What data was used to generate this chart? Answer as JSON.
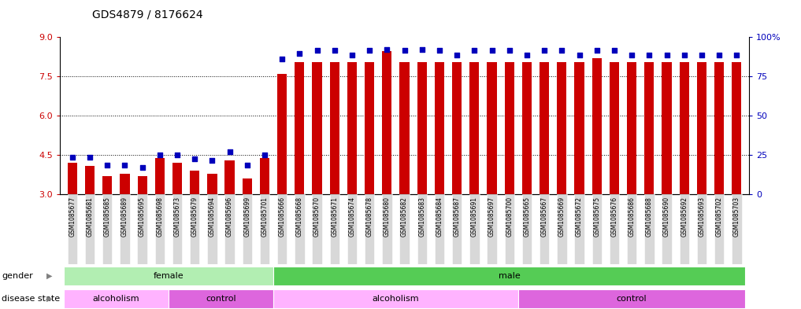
{
  "title": "GDS4879 / 8176624",
  "samples": [
    "GSM1085677",
    "GSM1085681",
    "GSM1085685",
    "GSM1085689",
    "GSM1085695",
    "GSM1085698",
    "GSM1085673",
    "GSM1085679",
    "GSM1085694",
    "GSM1085696",
    "GSM1085699",
    "GSM1085701",
    "GSM1085666",
    "GSM1085668",
    "GSM1085670",
    "GSM1085671",
    "GSM1085674",
    "GSM1085678",
    "GSM1085680",
    "GSM1085682",
    "GSM1085683",
    "GSM1085684",
    "GSM1085687",
    "GSM1085691",
    "GSM1085697",
    "GSM1085700",
    "GSM1085665",
    "GSM1085667",
    "GSM1085669",
    "GSM1085672",
    "GSM1085675",
    "GSM1085676",
    "GSM1085686",
    "GSM1085688",
    "GSM1085690",
    "GSM1085692",
    "GSM1085693",
    "GSM1085702",
    "GSM1085703"
  ],
  "red_values": [
    4.2,
    4.1,
    3.7,
    3.8,
    3.7,
    4.4,
    4.2,
    3.9,
    3.8,
    4.3,
    3.6,
    4.4,
    7.6,
    8.05,
    8.05,
    8.05,
    8.05,
    8.05,
    8.45,
    8.05,
    8.05,
    8.05,
    8.05,
    8.05,
    8.05,
    8.05,
    8.05,
    8.05,
    8.05,
    8.05,
    8.2,
    8.05,
    8.05,
    8.05,
    8.05,
    8.05,
    8.05,
    8.05,
    8.05
  ],
  "blue_values": [
    4.43,
    4.42,
    4.12,
    4.12,
    4.02,
    4.52,
    4.52,
    4.35,
    4.3,
    4.62,
    4.12,
    4.52,
    8.15,
    8.38,
    8.48,
    8.48,
    8.3,
    8.48,
    8.52,
    8.48,
    8.52,
    8.48,
    8.32,
    8.48,
    8.48,
    8.48,
    8.32,
    8.48,
    8.48,
    8.32,
    8.48,
    8.48,
    8.32,
    8.32,
    8.32,
    8.32,
    8.32,
    8.32,
    8.32
  ],
  "gender_groups": [
    {
      "label": "female",
      "start": 0,
      "end": 11,
      "color": "#b2eeb2"
    },
    {
      "label": "male",
      "start": 12,
      "end": 38,
      "color": "#55cc55"
    }
  ],
  "disease_groups": [
    {
      "label": "alcoholism",
      "start": 0,
      "end": 5,
      "color": "#ffb3ff"
    },
    {
      "label": "control",
      "start": 6,
      "end": 11,
      "color": "#dd66dd"
    },
    {
      "label": "alcoholism",
      "start": 12,
      "end": 25,
      "color": "#ffb3ff"
    },
    {
      "label": "control",
      "start": 26,
      "end": 38,
      "color": "#dd66dd"
    }
  ],
  "ylim_left": [
    3,
    9
  ],
  "yticks_left": [
    3,
    4.5,
    6,
    7.5,
    9
  ],
  "yticks_right_vals": [
    0,
    25,
    50,
    75,
    100
  ],
  "yticks_right_labels": [
    "0",
    "25",
    "50",
    "75",
    "100%"
  ],
  "bar_color": "#cc0000",
  "dot_color": "#0000bb",
  "dotted_lines": [
    4.5,
    6.0,
    7.5
  ],
  "tick_label_bg": "#d8d8d8"
}
